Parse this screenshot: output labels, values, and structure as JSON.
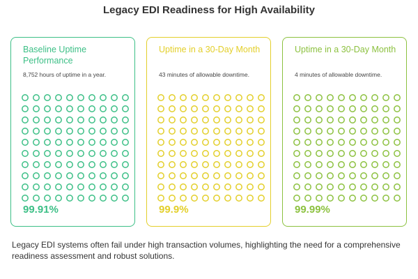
{
  "title": "Legacy EDI Readiness for High Availability",
  "cards": [
    {
      "title": "Baseline Uptime Performance",
      "description": "8,752 hours of uptime in a year.",
      "value": "99.91%",
      "color": "#3cbf86",
      "dot_rows": 10,
      "dot_cols": 10
    },
    {
      "title": "Uptime in a 30-Day Month",
      "description": "43 minutes of allowable downtime.",
      "value": "99.9%",
      "color": "#e3cf2a",
      "dot_rows": 10,
      "dot_cols": 10
    },
    {
      "title": "Uptime in a 30-Day Month",
      "description": "4 minutes of allowable downtime.",
      "value": "99.99%",
      "color": "#8cc13f",
      "dot_rows": 10,
      "dot_cols": 10
    }
  ],
  "footer": "Legacy EDI systems often fail under high transaction volumes, highlighting the need for a comprehensive readiness assessment and robust solutions."
}
